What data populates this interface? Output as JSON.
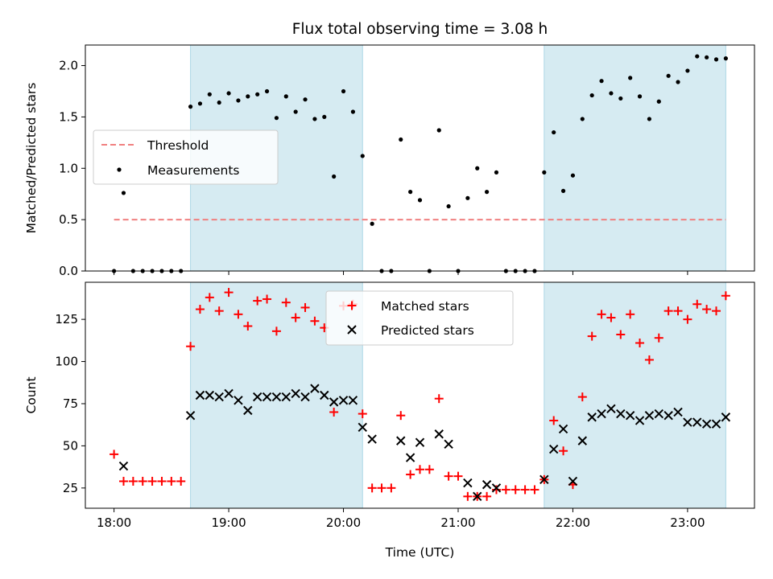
{
  "chart_data": [
    {
      "type": "scatter",
      "title": "Flux total observing time = 3.08 h",
      "xlabel": "",
      "ylabel": "Matched/Predicted stars",
      "ylim": [
        0,
        2.2
      ],
      "yticks": [
        "0.0",
        "0.5",
        "1.0",
        "1.5",
        "2.0"
      ],
      "legend_position": "center-left",
      "legend": [
        {
          "label": "Threshold",
          "style": "dashed-line",
          "color": "#f08080"
        },
        {
          "label": "Measurements",
          "style": "dot",
          "color": "#000000"
        }
      ],
      "threshold": {
        "label": "Threshold",
        "value": 0.5,
        "x_range": [
          "18:00",
          "23:20"
        ]
      },
      "series": [
        {
          "name": "Measurements",
          "color": "#000000",
          "points": [
            [
              "18:00",
              0.0
            ],
            [
              "18:05",
              0.76
            ],
            [
              "18:10",
              0.0
            ],
            [
              "18:15",
              0.0
            ],
            [
              "18:20",
              0.0
            ],
            [
              "18:25",
              0.0
            ],
            [
              "18:30",
              0.0
            ],
            [
              "18:35",
              0.0
            ],
            [
              "18:40",
              1.6
            ],
            [
              "18:45",
              1.63
            ],
            [
              "18:50",
              1.72
            ],
            [
              "18:55",
              1.64
            ],
            [
              "19:00",
              1.73
            ],
            [
              "19:05",
              1.66
            ],
            [
              "19:10",
              1.7
            ],
            [
              "19:15",
              1.72
            ],
            [
              "19:20",
              1.75
            ],
            [
              "19:25",
              1.49
            ],
            [
              "19:30",
              1.7
            ],
            [
              "19:35",
              1.55
            ],
            [
              "19:40",
              1.67
            ],
            [
              "19:45",
              1.48
            ],
            [
              "19:50",
              1.5
            ],
            [
              "19:55",
              0.92
            ],
            [
              "20:00",
              1.75
            ],
            [
              "20:05",
              1.55
            ],
            [
              "20:10",
              1.12
            ],
            [
              "20:15",
              0.46
            ],
            [
              "20:20",
              0.0
            ],
            [
              "20:25",
              0.0
            ],
            [
              "20:30",
              1.28
            ],
            [
              "20:35",
              0.77
            ],
            [
              "20:40",
              0.69
            ],
            [
              "20:45",
              0.0
            ],
            [
              "20:50",
              1.37
            ],
            [
              "20:55",
              0.63
            ],
            [
              "21:00",
              0.0
            ],
            [
              "21:05",
              0.71
            ],
            [
              "21:10",
              1.0
            ],
            [
              "21:15",
              0.77
            ],
            [
              "21:20",
              0.96
            ],
            [
              "21:25",
              0.0
            ],
            [
              "21:30",
              0.0
            ],
            [
              "21:35",
              0.0
            ],
            [
              "21:40",
              0.0
            ],
            [
              "21:45",
              0.96
            ],
            [
              "21:50",
              1.35
            ],
            [
              "21:55",
              0.78
            ],
            [
              "22:00",
              0.93
            ],
            [
              "22:05",
              1.48
            ],
            [
              "22:10",
              1.71
            ],
            [
              "22:15",
              1.85
            ],
            [
              "22:20",
              1.73
            ],
            [
              "22:25",
              1.68
            ],
            [
              "22:30",
              1.88
            ],
            [
              "22:35",
              1.7
            ],
            [
              "22:40",
              1.48
            ],
            [
              "22:45",
              1.65
            ],
            [
              "22:50",
              1.9
            ],
            [
              "22:55",
              1.84
            ],
            [
              "23:00",
              1.95
            ],
            [
              "23:05",
              2.09
            ],
            [
              "23:10",
              2.08
            ],
            [
              "23:15",
              2.06
            ],
            [
              "23:20",
              2.07
            ]
          ]
        }
      ],
      "shaded_intervals": [
        [
          "18:40",
          "20:10"
        ],
        [
          "21:45",
          "23:20"
        ]
      ]
    },
    {
      "type": "scatter",
      "title": "",
      "xlabel": "Time (UTC)",
      "ylabel": "Count",
      "ylim": [
        13,
        147
      ],
      "xlim": [
        "17:45",
        "23:35"
      ],
      "xticks": [
        "18:00",
        "19:00",
        "20:00",
        "21:00",
        "22:00",
        "23:00"
      ],
      "yticks": [
        "25",
        "50",
        "75",
        "100",
        "125"
      ],
      "legend_position": "top-center",
      "legend": [
        {
          "label": "Matched stars",
          "style": "plus",
          "color": "#ff0000"
        },
        {
          "label": "Predicted stars",
          "style": "x",
          "color": "#000000"
        }
      ],
      "series": [
        {
          "name": "Matched stars",
          "color": "#ff0000",
          "marker": "plus",
          "points": [
            [
              "18:00",
              45
            ],
            [
              "18:05",
              29
            ],
            [
              "18:10",
              29
            ],
            [
              "18:15",
              29
            ],
            [
              "18:20",
              29
            ],
            [
              "18:25",
              29
            ],
            [
              "18:30",
              29
            ],
            [
              "18:35",
              29
            ],
            [
              "18:40",
              109
            ],
            [
              "18:45",
              131
            ],
            [
              "18:50",
              138
            ],
            [
              "18:55",
              130
            ],
            [
              "19:00",
              141
            ],
            [
              "19:05",
              128
            ],
            [
              "19:10",
              121
            ],
            [
              "19:15",
              136
            ],
            [
              "19:20",
              137
            ],
            [
              "19:25",
              118
            ],
            [
              "19:30",
              135
            ],
            [
              "19:35",
              126
            ],
            [
              "19:40",
              132
            ],
            [
              "19:45",
              124
            ],
            [
              "19:50",
              120
            ],
            [
              "19:55",
              70
            ],
            [
              "20:00",
              133
            ],
            [
              "20:05",
              134
            ],
            [
              "20:10",
              69
            ],
            [
              "20:15",
              25
            ],
            [
              "20:20",
              25
            ],
            [
              "20:25",
              25
            ],
            [
              "20:30",
              68
            ],
            [
              "20:35",
              33
            ],
            [
              "20:40",
              36
            ],
            [
              "20:45",
              36
            ],
            [
              "20:50",
              78
            ],
            [
              "20:55",
              32
            ],
            [
              "21:00",
              32
            ],
            [
              "21:05",
              20
            ],
            [
              "21:10",
              20
            ],
            [
              "21:15",
              20
            ],
            [
              "21:20",
              24
            ],
            [
              "21:25",
              24
            ],
            [
              "21:30",
              24
            ],
            [
              "21:35",
              24
            ],
            [
              "21:40",
              24
            ],
            [
              "21:45",
              30
            ],
            [
              "21:50",
              65
            ],
            [
              "21:55",
              47
            ],
            [
              "22:00",
              27
            ],
            [
              "22:05",
              79
            ],
            [
              "22:10",
              115
            ],
            [
              "22:15",
              128
            ],
            [
              "22:20",
              126
            ],
            [
              "22:25",
              116
            ],
            [
              "22:30",
              128
            ],
            [
              "22:35",
              111
            ],
            [
              "22:40",
              101
            ],
            [
              "22:45",
              114
            ],
            [
              "22:50",
              130
            ],
            [
              "22:55",
              130
            ],
            [
              "23:00",
              125
            ],
            [
              "23:05",
              134
            ],
            [
              "23:10",
              131
            ],
            [
              "23:15",
              130
            ],
            [
              "23:20",
              139
            ]
          ]
        },
        {
          "name": "Predicted stars",
          "color": "#000000",
          "marker": "x",
          "points": [
            [
              "18:05",
              38
            ],
            [
              "18:40",
              68
            ],
            [
              "18:45",
              80
            ],
            [
              "18:50",
              80
            ],
            [
              "18:55",
              79
            ],
            [
              "19:00",
              81
            ],
            [
              "19:05",
              77
            ],
            [
              "19:10",
              71
            ],
            [
              "19:15",
              79
            ],
            [
              "19:20",
              79
            ],
            [
              "19:25",
              79
            ],
            [
              "19:30",
              79
            ],
            [
              "19:35",
              81
            ],
            [
              "19:40",
              79
            ],
            [
              "19:45",
              84
            ],
            [
              "19:50",
              80
            ],
            [
              "19:55",
              76
            ],
            [
              "20:00",
              77
            ],
            [
              "20:05",
              77
            ],
            [
              "20:10",
              61
            ],
            [
              "20:15",
              54
            ],
            [
              "20:30",
              53
            ],
            [
              "20:35",
              43
            ],
            [
              "20:40",
              52
            ],
            [
              "20:50",
              57
            ],
            [
              "20:55",
              51
            ],
            [
              "21:05",
              28
            ],
            [
              "21:10",
              20
            ],
            [
              "21:15",
              27
            ],
            [
              "21:20",
              25
            ],
            [
              "21:45",
              30
            ],
            [
              "21:50",
              48
            ],
            [
              "21:55",
              60
            ],
            [
              "22:00",
              29
            ],
            [
              "22:05",
              53
            ],
            [
              "22:10",
              67
            ],
            [
              "22:15",
              69
            ],
            [
              "22:20",
              72
            ],
            [
              "22:25",
              69
            ],
            [
              "22:30",
              68
            ],
            [
              "22:35",
              65
            ],
            [
              "22:40",
              68
            ],
            [
              "22:45",
              69
            ],
            [
              "22:50",
              68
            ],
            [
              "22:55",
              70
            ],
            [
              "23:00",
              64
            ],
            [
              "23:05",
              64
            ],
            [
              "23:10",
              63
            ],
            [
              "23:15",
              63
            ],
            [
              "23:20",
              67
            ]
          ]
        }
      ],
      "shaded_intervals": [
        [
          "18:40",
          "20:10"
        ],
        [
          "21:45",
          "23:20"
        ]
      ]
    }
  ],
  "colors": {
    "shade": "#add8e6",
    "threshold": "#f08080",
    "matched": "#ff0000",
    "predicted": "#000000"
  }
}
